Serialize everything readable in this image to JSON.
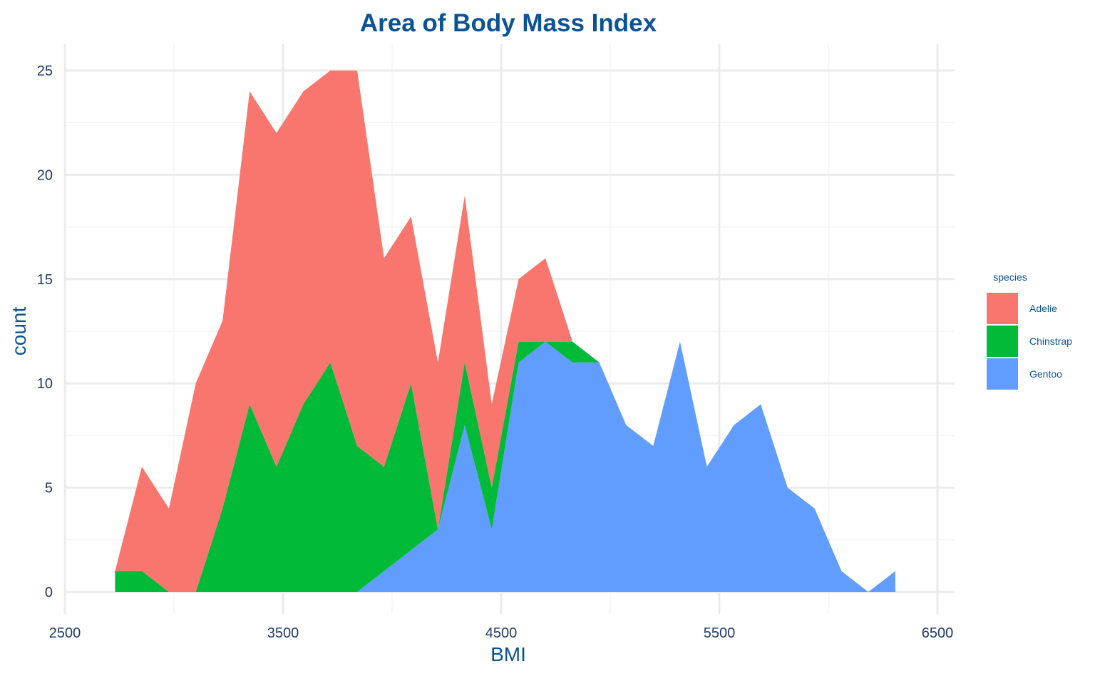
{
  "colors": {
    "title": "#0b5394",
    "axis_title": "#0b5394",
    "tick": "#1f3a68",
    "grid_major": "#ebebeb",
    "grid_minor": "#f3f3f3",
    "legend_text": "#0b5394"
  },
  "chart_data": {
    "type": "area",
    "stacked": true,
    "title": "Area of Body Mass Index",
    "xlabel": "BMI",
    "ylabel": "count",
    "xlim": [
      2500,
      6500
    ],
    "ylim": [
      0,
      25
    ],
    "x_ticks": [
      "2500",
      "3500",
      "4500",
      "5500",
      "6500"
    ],
    "y_ticks": [
      "0",
      "5",
      "10",
      "15",
      "20",
      "25"
    ],
    "grid": true,
    "legend": {
      "title": "species",
      "position": "right"
    },
    "x": [
      2730,
      2853,
      2977,
      3100,
      3223,
      3347,
      3470,
      3593,
      3717,
      3840,
      3963,
      4087,
      4210,
      4333,
      4457,
      4580,
      4703,
      4827,
      4950,
      5073,
      5197,
      5320,
      5443,
      5567,
      5690,
      5813,
      5937,
      6060,
      6183,
      6307
    ],
    "series": [
      {
        "name": "Adelie",
        "color": "#f8766d",
        "values": [
          0,
          5,
          4,
          10,
          9,
          15,
          16,
          15,
          14,
          18,
          10,
          8,
          8,
          8,
          4,
          3,
          4,
          0,
          0,
          0,
          0,
          0,
          0,
          0,
          0,
          0,
          0,
          0,
          0,
          0
        ]
      },
      {
        "name": "Chinstrap",
        "color": "#00ba38",
        "values": [
          1,
          1,
          0,
          0,
          4,
          9,
          6,
          9,
          11,
          7,
          5,
          8,
          0,
          3,
          2,
          1,
          0,
          1,
          0,
          0,
          0,
          0,
          0,
          0,
          0,
          0,
          0,
          0,
          0,
          0
        ]
      },
      {
        "name": "Gentoo",
        "color": "#619cff",
        "values": [
          0,
          0,
          0,
          0,
          0,
          0,
          0,
          0,
          0,
          0,
          1,
          2,
          3,
          8,
          3,
          11,
          12,
          11,
          11,
          8,
          7,
          12,
          6,
          8,
          9,
          5,
          4,
          1,
          0,
          1
        ]
      }
    ]
  }
}
